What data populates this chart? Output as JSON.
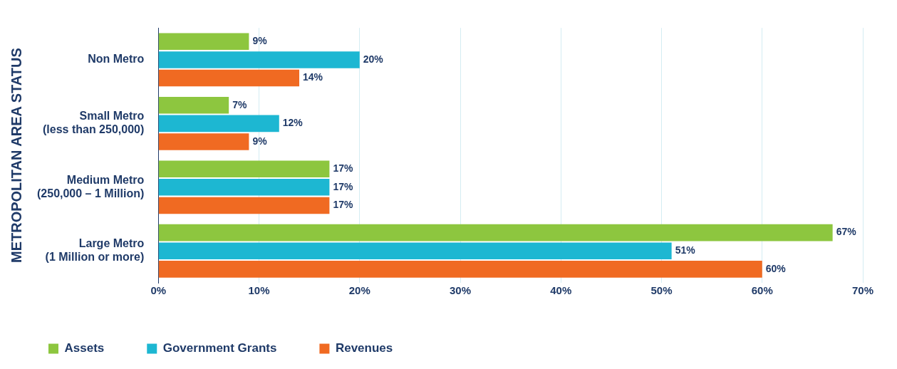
{
  "chart_data": {
    "type": "bar",
    "orientation": "horizontal",
    "ylabel": "METROPOLITAN AREA STATUS",
    "categories": [
      "Non Metro",
      "Small Metro\n(less than 250,000)",
      "Medium Metro\n(250,000 – 1 Million)",
      "Large Metro\n(1 Million or more)"
    ],
    "series": [
      {
        "name": "Assets",
        "color": "#8dc63f",
        "values": [
          9,
          7,
          17,
          67
        ],
        "value_labels": [
          "9%",
          "7%",
          "17%",
          "67%"
        ]
      },
      {
        "name": "Government Grants",
        "color": "#1db7d2",
        "values": [
          20,
          12,
          17,
          51
        ],
        "value_labels": [
          "20%",
          "12%",
          "17%",
          "51%"
        ]
      },
      {
        "name": "Revenues",
        "color": "#f06a22",
        "values": [
          14,
          9,
          17,
          60
        ],
        "value_labels": [
          "14%",
          "9%",
          "17%",
          "60%"
        ]
      }
    ],
    "xlim": [
      0,
      70
    ],
    "xticks": [
      {
        "value": 0,
        "label": "0%"
      },
      {
        "value": 10,
        "label": "10%"
      },
      {
        "value": 20,
        "label": "20%"
      },
      {
        "value": 30,
        "label": "30%"
      },
      {
        "value": 40,
        "label": "40%"
      },
      {
        "value": 50,
        "label": "50%"
      },
      {
        "value": 60,
        "label": "60%"
      },
      {
        "value": 70,
        "label": "70%"
      }
    ],
    "grid": "x",
    "legend": "bottom"
  }
}
